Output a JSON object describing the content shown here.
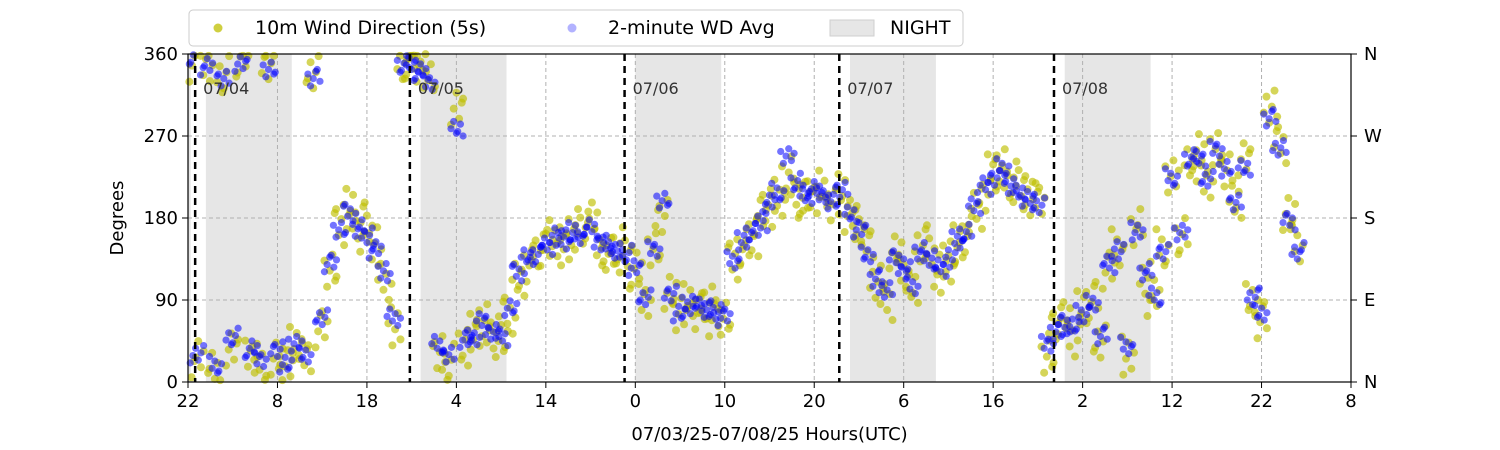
{
  "chart_data": {
    "type": "scatter",
    "title": "",
    "xlabel": "07/03/25-07/08/25  Hours(UTC)",
    "ylabel": "Degrees",
    "x_unit": "hours",
    "x_start_hour_of_day": 22,
    "xlim": [
      0,
      130
    ],
    "ylim": [
      0,
      360
    ],
    "x_tick_labels": [
      "22",
      "8",
      "18",
      "4",
      "14",
      "0",
      "10",
      "20",
      "6",
      "16",
      "2",
      "12",
      "22",
      "8"
    ],
    "y_ticks": [
      0,
      90,
      180,
      270,
      360
    ],
    "y_tick_labels": [
      "0",
      "90",
      "180",
      "270",
      "360"
    ],
    "y2_tick_labels": [
      "N",
      "E",
      "S",
      "W",
      "N"
    ],
    "grid": true,
    "legend": {
      "position": "top",
      "items": [
        {
          "label": "10m Wind Direction (5s)",
          "color": "#bfbf00",
          "marker": "circle"
        },
        {
          "label": "2-minute WD Avg",
          "color": "#0000ff",
          "marker": "circle"
        },
        {
          "label": "NIGHT",
          "color": "#e6e6e6",
          "marker": "patch"
        }
      ]
    },
    "day_boundaries": [
      {
        "x": 0.8,
        "label": "07/04"
      },
      {
        "x": 24.8,
        "label": "07/05"
      },
      {
        "x": 48.8,
        "label": "07/06"
      },
      {
        "x": 72.8,
        "label": "07/07"
      },
      {
        "x": 96.8,
        "label": "07/08"
      }
    ],
    "night_spans": [
      [
        -1,
        0.3
      ],
      [
        2,
        11.6
      ],
      [
        26,
        35.6
      ],
      [
        50,
        59.6
      ],
      [
        74,
        83.6
      ],
      [
        98,
        107.6
      ]
    ],
    "series": [
      {
        "name": "10m Wind Direction (5s)",
        "color": "#bfbf00",
        "x": [
          0,
          1,
          2,
          3,
          4,
          5,
          6,
          7,
          8,
          9,
          10,
          11,
          12,
          13,
          14,
          15,
          16,
          17,
          18,
          19,
          20,
          21,
          22,
          23,
          24,
          25,
          26,
          27,
          28,
          29,
          30,
          31,
          32,
          33,
          34,
          35,
          36,
          37,
          38,
          39,
          40,
          41,
          42,
          43,
          44,
          45,
          46,
          47,
          48,
          49,
          50,
          51,
          52,
          53,
          54,
          55,
          56,
          57,
          58,
          59,
          60,
          61,
          62,
          63,
          64,
          65,
          66,
          67,
          68,
          69,
          70,
          71,
          72,
          73,
          74,
          75,
          76,
          77,
          78,
          79,
          80,
          81,
          82,
          83,
          84,
          85,
          86,
          87,
          88,
          89,
          90,
          91,
          92,
          93,
          94,
          95,
          96,
          97,
          98,
          99,
          100,
          101,
          102,
          103,
          104,
          105,
          106,
          107,
          108,
          109,
          110,
          111,
          112,
          113,
          114,
          115,
          116,
          117,
          118,
          119,
          120,
          121,
          122,
          123,
          124
        ],
        "y": [
          345,
          25,
          350,
          10,
          340,
          40,
          355,
          30,
          20,
          350,
          30,
          15,
          45,
          25,
          340,
          60,
          120,
          170,
          190,
          175,
          165,
          150,
          110,
          60,
          350,
          355,
          345,
          340,
          35,
          20,
          300,
          40,
          55,
          70,
          50,
          45,
          75,
          110,
          130,
          140,
          145,
          160,
          150,
          170,
          165,
          175,
          150,
          145,
          150,
          140,
          120,
          90,
          150,
          180,
          100,
          70,
          90,
          80,
          85,
          70,
          65,
          130,
          150,
          160,
          180,
          190,
          200,
          230,
          210,
          200,
          205,
          210,
          195,
          215,
          180,
          170,
          150,
          110,
          90,
          140,
          120,
          100,
          150,
          140,
          120,
          130,
          150,
          160,
          190,
          210,
          230,
          240,
          220,
          215,
          205,
          200,
          30,
          60,
          70,
          50,
          80,
          90,
          40,
          120,
          150,
          30,
          170,
          110,
          90,
          150,
          230,
          160,
          240,
          250,
          220,
          260,
          230,
          200,
          240,
          90,
          70,
          300,
          260,
          180,
          150
        ]
      },
      {
        "name": "2-minute WD Avg",
        "color": "#0000ff",
        "x": [
          0,
          1,
          2,
          3,
          4,
          5,
          6,
          7,
          8,
          9,
          10,
          11,
          12,
          13,
          14,
          15,
          16,
          17,
          18,
          19,
          20,
          21,
          22,
          23,
          24,
          25,
          26,
          27,
          28,
          29,
          30,
          31,
          32,
          33,
          34,
          35,
          36,
          37,
          38,
          39,
          40,
          41,
          42,
          43,
          44,
          45,
          46,
          47,
          48,
          49,
          50,
          51,
          52,
          53,
          54,
          55,
          56,
          57,
          58,
          59,
          60,
          61,
          62,
          63,
          64,
          65,
          66,
          67,
          68,
          69,
          70,
          71,
          72,
          73,
          74,
          75,
          76,
          77,
          78,
          79,
          80,
          81,
          82,
          83,
          84,
          85,
          86,
          87,
          88,
          89,
          90,
          91,
          92,
          93,
          94,
          95,
          96,
          97,
          98,
          99,
          100,
          101,
          102,
          103,
          104,
          105,
          106,
          107,
          108,
          109,
          110,
          111,
          112,
          113,
          114,
          115,
          116,
          117,
          118,
          119,
          120,
          121,
          122,
          123,
          124
        ],
        "y": [
          350,
          30,
          345,
          20,
          335,
          50,
          350,
          35,
          25,
          345,
          35,
          20,
          40,
          30,
          335,
          70,
          130,
          165,
          185,
          170,
          160,
          145,
          120,
          70,
          350,
          350,
          340,
          330,
          40,
          30,
          280,
          45,
          50,
          65,
          55,
          50,
          80,
          120,
          135,
          140,
          150,
          160,
          155,
          165,
          160,
          170,
          155,
          150,
          145,
          140,
          125,
          95,
          145,
          200,
          95,
          75,
          85,
          85,
          80,
          75,
          70,
          135,
          155,
          165,
          175,
          195,
          210,
          250,
          220,
          205,
          210,
          205,
          200,
          210,
          185,
          165,
          140,
          115,
          100,
          135,
          125,
          105,
          145,
          135,
          125,
          135,
          155,
          165,
          195,
          215,
          225,
          235,
          215,
          210,
          200,
          195,
          40,
          55,
          65,
          60,
          75,
          85,
          50,
          130,
          145,
          40,
          165,
          120,
          95,
          145,
          225,
          165,
          245,
          245,
          225,
          255,
          235,
          195,
          235,
          95,
          75,
          290,
          255,
          175,
          145
        ]
      }
    ]
  }
}
